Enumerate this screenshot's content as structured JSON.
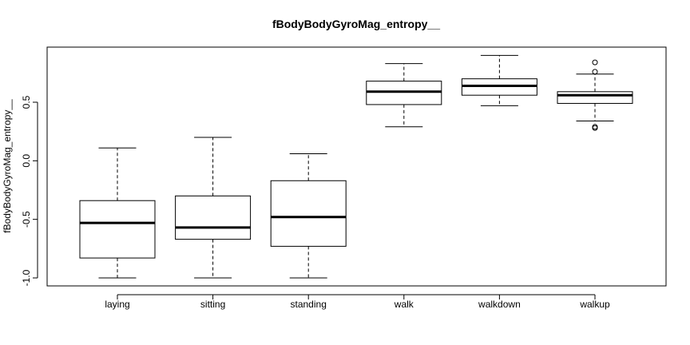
{
  "chart_data": {
    "type": "boxplot",
    "title": "fBodyBodyGyroMag_entropy__",
    "xlabel": "",
    "ylabel": "fBodyBodyGyroMag_entropy__",
    "ylim": [
      -1.05,
      0.97
    ],
    "yticks": [
      -1.0,
      -0.5,
      0.0,
      0.5
    ],
    "ytick_labels": [
      "-1.0",
      "-0.5",
      "0.0",
      "0.5"
    ],
    "grid": false,
    "legend": "none",
    "categories": [
      "laying",
      "sitting",
      "standing",
      "walk",
      "walkdown",
      "walkup"
    ],
    "boxes": [
      {
        "whisker_low": -1.0,
        "q1": -0.83,
        "median": -0.53,
        "q3": -0.34,
        "whisker_high": 0.11,
        "outliers": []
      },
      {
        "whisker_low": -1.0,
        "q1": -0.67,
        "median": -0.57,
        "q3": -0.3,
        "whisker_high": 0.2,
        "outliers": []
      },
      {
        "whisker_low": -1.0,
        "q1": -0.73,
        "median": -0.48,
        "q3": -0.17,
        "whisker_high": 0.06,
        "outliers": []
      },
      {
        "whisker_low": 0.29,
        "q1": 0.48,
        "median": 0.59,
        "q3": 0.68,
        "whisker_high": 0.83,
        "outliers": []
      },
      {
        "whisker_low": 0.47,
        "q1": 0.56,
        "median": 0.64,
        "q3": 0.7,
        "whisker_high": 0.9,
        "outliers": []
      },
      {
        "whisker_low": 0.34,
        "q1": 0.49,
        "median": 0.56,
        "q3": 0.59,
        "whisker_high": 0.74,
        "outliers": [
          0.84,
          0.76,
          0.29,
          0.28
        ]
      }
    ],
    "colors": {
      "box_fill": "#ffffff",
      "stroke": "#000000",
      "background": "#ffffff"
    }
  }
}
